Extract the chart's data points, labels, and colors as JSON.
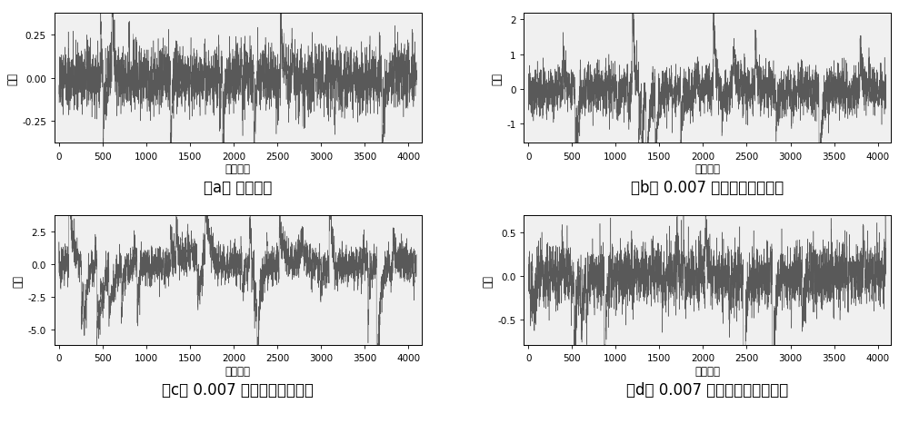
{
  "n_samples": 4096,
  "xlim": [
    -50,
    4150
  ],
  "xticks": [
    0,
    500,
    1000,
    1500,
    2000,
    2500,
    3000,
    3500,
    4000
  ],
  "xlabel": "采样点数",
  "ylabel": "振幅",
  "signal_color": "#595959",
  "linewidth": 0.35,
  "bg_color": "#f0f0f0",
  "plots": [
    {
      "title": "（a） 正常状态",
      "ylim": [
        -0.38,
        0.38
      ],
      "yticks": [
        -0.25,
        0.0,
        0.25
      ],
      "std": 0.09,
      "seed": 1001,
      "spike_prob": 0.008,
      "spike_scale": 0.22,
      "decay": 0.02
    },
    {
      "title": "（b） 0.007 裂纹内圈故障状态",
      "ylim": [
        -1.55,
        2.2
      ],
      "yticks": [
        -1,
        0,
        1,
        2
      ],
      "std": 0.32,
      "seed": 1002,
      "spike_prob": 0.012,
      "spike_scale": 0.9,
      "decay": 0.03
    },
    {
      "title": "（c） 0.007 裂纹外圈故障状态",
      "ylim": [
        -6.2,
        3.8
      ],
      "yticks": [
        -5.0,
        -2.5,
        0.0,
        2.5
      ],
      "std": 0.7,
      "seed": 1003,
      "spike_prob": 0.015,
      "spike_scale": 2.2,
      "decay": 0.04
    },
    {
      "title": "（d） 0.007 裂纹滚动体故障状态",
      "ylim": [
        -0.8,
        0.7
      ],
      "yticks": [
        -0.5,
        0.0,
        0.5
      ],
      "std": 0.17,
      "seed": 1004,
      "spike_prob": 0.01,
      "spike_scale": 0.42,
      "decay": 0.025
    }
  ],
  "figure_bg": "#ffffff",
  "caption_fontsize": 12,
  "axis_fontsize": 8.5,
  "ylabel_fontsize": 8.5,
  "tick_fontsize": 7.5
}
